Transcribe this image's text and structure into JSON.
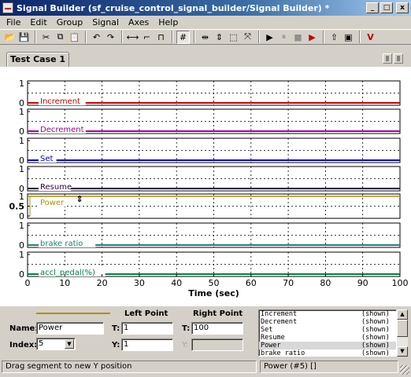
{
  "window": {
    "title": "Signal Builder (sf_cruise_control_signal_builder/Signal Builder) *",
    "buttons": {
      "minimize": "_",
      "maximize": "□",
      "close": "x"
    }
  },
  "menu": [
    "File",
    "Edit",
    "Group",
    "Signal",
    "Axes",
    "Help"
  ],
  "toolbar": [
    {
      "name": "open-icon",
      "glyph": "📂"
    },
    {
      "name": "save-icon",
      "glyph": "💾"
    },
    {
      "sep": true
    },
    {
      "name": "cut-icon",
      "glyph": "✂"
    },
    {
      "name": "copy-icon",
      "glyph": "⧉"
    },
    {
      "name": "paste-icon",
      "glyph": "📋"
    },
    {
      "sep": true
    },
    {
      "name": "undo-icon",
      "glyph": "↶"
    },
    {
      "name": "redo-icon",
      "glyph": "↷"
    },
    {
      "sep": true
    },
    {
      "name": "constant-icon",
      "glyph": "⟷"
    },
    {
      "name": "step-icon",
      "glyph": "⌐"
    },
    {
      "name": "pulse-icon",
      "glyph": "⊓"
    },
    {
      "sep": true
    },
    {
      "name": "grid-icon",
      "glyph": "#",
      "pressed": true
    },
    {
      "sep": true
    },
    {
      "name": "zoom-x-icon",
      "glyph": "⇹"
    },
    {
      "name": "zoom-y-icon",
      "glyph": "⇕"
    },
    {
      "name": "zoom-box-icon",
      "glyph": "⬚"
    },
    {
      "name": "zoom-fit-icon",
      "glyph": "⤧"
    },
    {
      "sep": true
    },
    {
      "name": "play-icon",
      "glyph": "▶"
    },
    {
      "name": "pause-icon",
      "glyph": "⏸",
      "grey": true
    },
    {
      "name": "stop-icon",
      "glyph": "■",
      "grey": true
    },
    {
      "name": "run-all-icon",
      "glyph": "▶",
      "red": true
    },
    {
      "sep": true
    },
    {
      "name": "go-to-model-icon",
      "glyph": "⇧"
    },
    {
      "name": "export-icon",
      "glyph": "▣"
    },
    {
      "sep": true
    },
    {
      "name": "verification-icon",
      "glyph": "V",
      "red": true
    }
  ],
  "tabs": [
    {
      "label": "Test Case 1",
      "active": true
    }
  ],
  "plot": {
    "x_label": "Time (sec)",
    "x_ticks": [
      "0",
      "10",
      "20",
      "30",
      "40",
      "50",
      "60",
      "70",
      "80",
      "90",
      "100"
    ],
    "xlim": [
      0,
      100
    ],
    "grid": true,
    "signals": [
      {
        "name": "Increment",
        "color": "#cc0000",
        "value": 0,
        "yticks": [
          "1",
          "0"
        ],
        "ylim": [
          0,
          1
        ]
      },
      {
        "name": "Decrement",
        "color": "#a000a0",
        "value": 0,
        "yticks": [
          "1",
          "0"
        ],
        "ylim": [
          0,
          1
        ]
      },
      {
        "name": "Set",
        "color": "#0000cc",
        "value": 0,
        "yticks": [
          "1",
          "0"
        ],
        "ylim": [
          0,
          1
        ]
      },
      {
        "name": "Resume",
        "color": "#300040",
        "value": 0,
        "yticks": [
          "1",
          "0"
        ],
        "ylim": [
          0,
          1
        ]
      },
      {
        "name": "Power",
        "color": "#b09000",
        "value": 1,
        "yticks": [
          "1",
          "0.5",
          "0"
        ],
        "ylim": [
          0,
          1
        ],
        "selected": true
      },
      {
        "name": "brake ratio",
        "color": "#208080",
        "value": 0,
        "yticks": [
          "1",
          "0"
        ],
        "ylim": [
          0,
          1
        ]
      },
      {
        "name": "accl_pedal(%)",
        "color": "#008040",
        "value": 0,
        "yticks": [
          "1",
          "0"
        ],
        "ylim": [
          0,
          1
        ]
      }
    ]
  },
  "editor": {
    "name_label": "Name:",
    "name_value": "Power",
    "index_label": "Index:",
    "index_value": "5",
    "left_point": {
      "heading": "Left Point",
      "t_label": "T:",
      "t_value": "1",
      "y_label": "Y:",
      "y_value": "1"
    },
    "right_point": {
      "heading": "Right Point",
      "t_label": "T:",
      "t_value": "100",
      "y_label": "Y:",
      "y_value": ""
    }
  },
  "signal_list": [
    {
      "name": "Increment",
      "state": "(shown)"
    },
    {
      "name": "Decrement",
      "state": "(shown)"
    },
    {
      "name": "Set",
      "state": "(shown)"
    },
    {
      "name": "Resume",
      "state": "(shown)"
    },
    {
      "name": "Power",
      "state": "(shown)",
      "selected": true
    },
    {
      "name": "brake ratio",
      "state": "(shown)"
    }
  ],
  "status": {
    "hint": "Drag segment to new Y position",
    "selection": "Power (#5) []"
  }
}
